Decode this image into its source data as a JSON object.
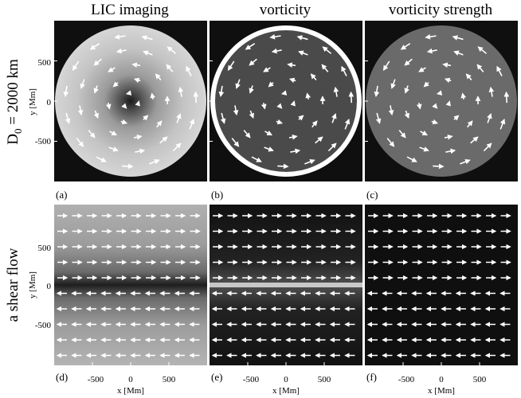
{
  "figure": {
    "column_titles": [
      "LIC imaging",
      "vorticity",
      "vorticity strength"
    ],
    "row_labels": {
      "top": {
        "prefix": "D",
        "subscript": "0",
        "suffix": " = 2000 km"
      },
      "bottom": "a shear flow"
    },
    "panel_labels": [
      "(a)",
      "(b)",
      "(c)",
      "(d)",
      "(e)",
      "(f)"
    ],
    "axes": {
      "ylabel": "y [Mm]",
      "xlabel": "x [Mm]",
      "y_ticks": [
        "500",
        "0",
        "-500"
      ],
      "y_tick_values": [
        500,
        0,
        -500
      ],
      "x_ticks": [
        "-500",
        "0",
        "500"
      ],
      "x_tick_values": [
        -500,
        0,
        500
      ],
      "range": [
        -1000,
        1000
      ]
    },
    "colors": {
      "background": "#0f0f0f",
      "lic_disk": "#cfcfcf",
      "vorticity_disk": "#4a4a4a",
      "strength_disk": "#6a6a6a",
      "arrows": "#ffffff",
      "shear_band": "#c8c8c8"
    }
  }
}
